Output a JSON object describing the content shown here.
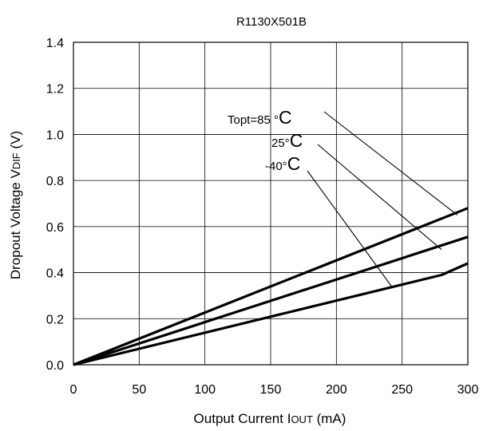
{
  "chart_data": {
    "type": "line",
    "title": "R1130X501B",
    "xlabel": "Output Current I",
    "xlabel_sub": "OUT",
    "xlabel_unit": " (mA)",
    "ylabel": "Dropout Voltage V",
    "ylabel_sub": "DIF",
    "ylabel_unit": " (V)",
    "xlim": [
      0,
      300
    ],
    "ylim": [
      0,
      1.4
    ],
    "x_ticks": [
      "0",
      "50",
      "100",
      "150",
      "200",
      "250",
      "300"
    ],
    "y_ticks": [
      "0.0",
      "0.2",
      "0.4",
      "0.6",
      "0.8",
      "1.0",
      "1.2",
      "1.4"
    ],
    "grid": true,
    "series": [
      {
        "name": "Topt=85 °C",
        "x": [
          0,
          300
        ],
        "y": [
          0,
          0.68
        ]
      },
      {
        "name": "25°C",
        "x": [
          0,
          300
        ],
        "y": [
          0,
          0.555
        ]
      },
      {
        "name": "-40°C",
        "x": [
          0,
          280,
          300
        ],
        "y": [
          0,
          0.39,
          0.44
        ]
      }
    ],
    "annotations": [
      {
        "text_main": "Topt=85 °",
        "text_unit": "C",
        "points_to": [
          292,
          0.65
        ]
      },
      {
        "text_main": "25°",
        "text_unit": "C",
        "points_to": [
          280,
          0.5
        ]
      },
      {
        "text_main": "-40°",
        "text_unit": "C",
        "points_to": [
          242,
          0.34
        ]
      }
    ]
  }
}
